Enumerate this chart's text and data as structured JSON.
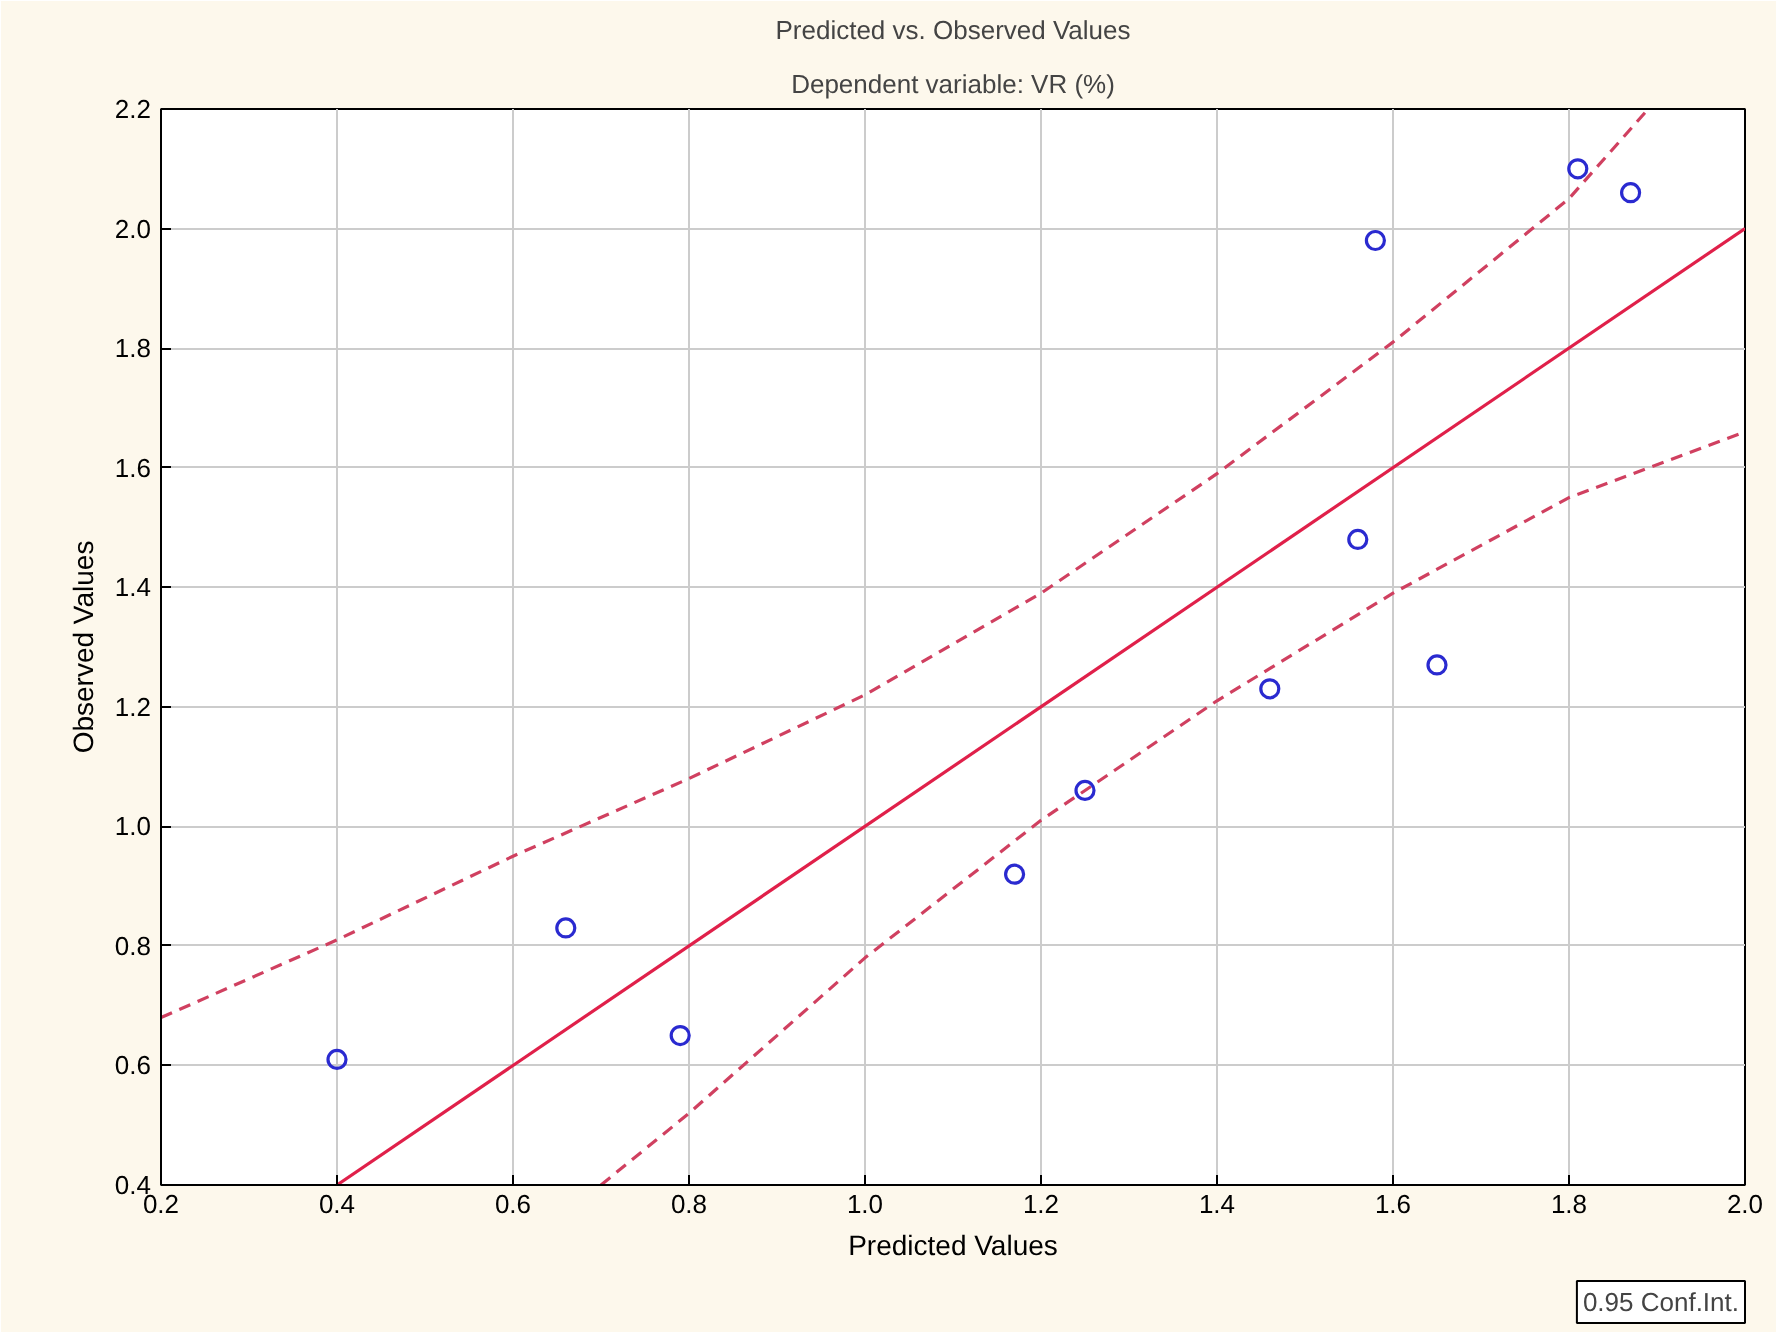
{
  "chart_data": {
    "type": "scatter",
    "title": "Predicted vs. Observed Values",
    "subtitle": "Dependent variable: VR (%)",
    "xlabel": "Predicted Values",
    "ylabel": "Observed Values",
    "xlim": [
      0.2,
      2.0
    ],
    "ylim": [
      0.4,
      2.2
    ],
    "xticks": [
      0.2,
      0.4,
      0.6,
      0.8,
      {
        "value": 1,
        "label": "1.0"
      },
      1.2,
      1.4,
      1.6,
      1.8,
      {
        "value": 2,
        "label": "2.0"
      }
    ],
    "yticks": [
      0.4,
      0.6,
      0.8,
      {
        "value": 1,
        "label": "1.0"
      },
      1.2,
      1.4,
      1.6,
      1.8,
      {
        "value": 2,
        "label": "2.0"
      },
      2.2
    ],
    "grid": true,
    "annotations": [
      "0.95 Conf.Int."
    ],
    "series": [
      {
        "marker": "circle",
        "color": "#2a2ad0",
        "x": [
          0.4,
          0.66,
          0.79,
          1.17,
          1.25,
          1.46,
          1.56,
          1.58,
          1.65,
          1.81,
          1.87
        ],
        "values": [
          0.61,
          0.83,
          0.65,
          0.92,
          1.06,
          1.23,
          1.48,
          1.98,
          1.27,
          2.1,
          2.06
        ]
      },
      {
        "type": "line",
        "color": "#e0204a",
        "line_style": "solid",
        "x": [
          0.4,
          2.0
        ],
        "values": [
          0.4,
          2.0
        ]
      },
      {
        "type": "line",
        "color": "#d04060",
        "line_style": "dashed",
        "x": [
          0.2,
          0.4,
          0.6,
          0.8,
          1.0,
          1.2,
          1.4,
          1.6,
          1.8,
          1.89
        ],
        "values": [
          0.68,
          0.81,
          0.95,
          1.08,
          1.22,
          1.39,
          1.59,
          1.81,
          2.05,
          2.2
        ]
      },
      {
        "type": "line",
        "color": "#d04060",
        "line_style": "dashed",
        "x": [
          0.7,
          0.8,
          1.0,
          1.2,
          1.4,
          1.6,
          1.8,
          2.0
        ],
        "values": [
          0.4,
          0.52,
          0.78,
          1.01,
          1.21,
          1.39,
          1.55,
          1.66
        ]
      }
    ]
  }
}
